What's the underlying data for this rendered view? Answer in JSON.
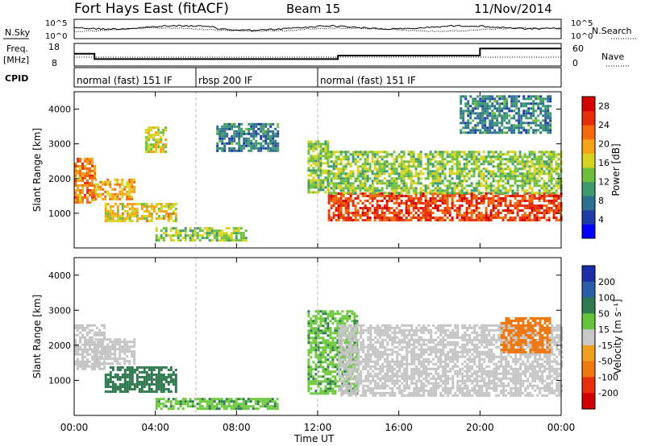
{
  "header": {
    "title": "Fort Hays East (fitACF)",
    "beam": "Beam 15",
    "date": "11/Nov/2014"
  },
  "top_panels": {
    "noise": {
      "left_label": "N.Sky",
      "right_label": "N.Search",
      "ticks_left": [
        "10^5",
        "10^0"
      ],
      "ticks_right": [
        "10^5",
        "10^0"
      ]
    },
    "freq": {
      "left_label_line1": "Freq.",
      "left_label_line2": "[MHz]",
      "right_label": "Nave",
      "ticks_left": [
        "18",
        "8"
      ],
      "ticks_right": [
        "60",
        "0"
      ]
    },
    "cpid": {
      "label": "CPID",
      "segments": [
        "normal (fast) 151 IF",
        "rbsp 200 IF",
        "normal (fast) 151 IF"
      ],
      "boundaries_hours": [
        0,
        6,
        12,
        24
      ]
    }
  },
  "panels": {
    "power": {
      "ylabel": "Slant Range [km]",
      "cbar_label": "Power [dB]",
      "cbar_ticks": [
        "4",
        "8",
        "12",
        "16",
        "20",
        "24",
        "28"
      ],
      "yticks": [
        "1000",
        "2000",
        "3000",
        "4000"
      ]
    },
    "velocity": {
      "ylabel": "Slant Range [km]",
      "cbar_label": "Velocity [m s⁻¹]",
      "cbar_ticks": [
        "200",
        "100",
        "50",
        "15",
        "-15",
        "-50",
        "-100",
        "-200"
      ],
      "yticks": [
        "1000",
        "2000",
        "3000",
        "4000"
      ]
    }
  },
  "xaxis": {
    "label": "Time UT",
    "ticks": [
      "00:00",
      "04:00",
      "08:00",
      "12:00",
      "16:00",
      "20:00",
      "00:00"
    ]
  },
  "colors": {
    "power_scale": [
      "#0000ff",
      "#1e3ca8",
      "#2e6e8e",
      "#3c9a6e",
      "#6fbf3e",
      "#d7d320",
      "#f7a318",
      "#f26a0c",
      "#e62e0a",
      "#d40000"
    ],
    "velocity_scale": [
      "#1c2ea6",
      "#2a5fa8",
      "#2f7a4e",
      "#66c43a",
      "#c8c8c8",
      "#f0a020",
      "#f07810",
      "#e63010",
      "#d00000"
    ],
    "vel_gray": "#c4c4c4",
    "vel_green": "#6cc83c",
    "vel_dkgreen": "#2f7a4e"
  },
  "chart_data": {
    "type": "heatmap",
    "title": "Fort Hays East (fitACF)",
    "subtitle": "Beam 15",
    "date": "11/Nov/2014",
    "x_unit": "hours UT",
    "xlim": [
      0,
      24
    ],
    "ylim": [
      0,
      4500
    ],
    "xlabel": "Time UT",
    "ylabel": "Slant Range [km]",
    "freq_mhz": [
      {
        "t0": 0,
        "t1": 1,
        "value": 14
      },
      {
        "t0": 1,
        "t1": 13,
        "value": 11
      },
      {
        "t0": 13,
        "t1": 20,
        "value": 13
      },
      {
        "t0": 20,
        "t1": 24,
        "value": 17
      }
    ],
    "power_panel": {
      "colorbar": "Power [dB]",
      "range": [
        0,
        30
      ],
      "regions": [
        {
          "t0": 0.0,
          "t1": 1.0,
          "r0": 1300,
          "r1": 2600,
          "power": 22
        },
        {
          "t0": 1.0,
          "t1": 3.0,
          "r0": 1400,
          "r1": 2000,
          "power": 20
        },
        {
          "t0": 1.5,
          "t1": 5.0,
          "r0": 800,
          "r1": 1300,
          "power": 18
        },
        {
          "t0": 3.5,
          "t1": 4.5,
          "r0": 2800,
          "r1": 3500,
          "power": 16
        },
        {
          "t0": 4.0,
          "t1": 8.5,
          "r0": 200,
          "r1": 600,
          "power": 14
        },
        {
          "t0": 7.0,
          "t1": 10.0,
          "r0": 2800,
          "r1": 3600,
          "power": 8
        },
        {
          "t0": 11.5,
          "t1": 12.5,
          "r0": 1600,
          "r1": 3100,
          "power": 14
        },
        {
          "t0": 12.5,
          "t1": 24.0,
          "r0": 800,
          "r1": 1600,
          "power": 26
        },
        {
          "t0": 12.5,
          "t1": 24.0,
          "r0": 1600,
          "r1": 2800,
          "power": 14
        },
        {
          "t0": 19.0,
          "t1": 23.5,
          "r0": 3300,
          "r1": 4400,
          "power": 8
        }
      ]
    },
    "velocity_panel": {
      "colorbar": "Velocity [m s⁻¹]",
      "range": [
        -200,
        200
      ],
      "regions": [
        {
          "t0": 0.0,
          "t1": 1.5,
          "r0": 1300,
          "r1": 2600,
          "velocity": 0
        },
        {
          "t0": 1.0,
          "t1": 3.0,
          "r0": 1500,
          "r1": 2200,
          "velocity": 0
        },
        {
          "t0": 1.5,
          "t1": 5.0,
          "r0": 700,
          "r1": 1400,
          "velocity": 60
        },
        {
          "t0": 4.0,
          "t1": 10.0,
          "r0": 200,
          "r1": 500,
          "velocity": 40
        },
        {
          "t0": 11.5,
          "t1": 14.0,
          "r0": 600,
          "r1": 3000,
          "velocity": 40
        },
        {
          "t0": 13.0,
          "t1": 24.0,
          "r0": 600,
          "r1": 2600,
          "velocity": 0
        },
        {
          "t0": 21.0,
          "t1": 23.5,
          "r0": 1800,
          "r1": 2800,
          "velocity": -60
        }
      ]
    }
  }
}
